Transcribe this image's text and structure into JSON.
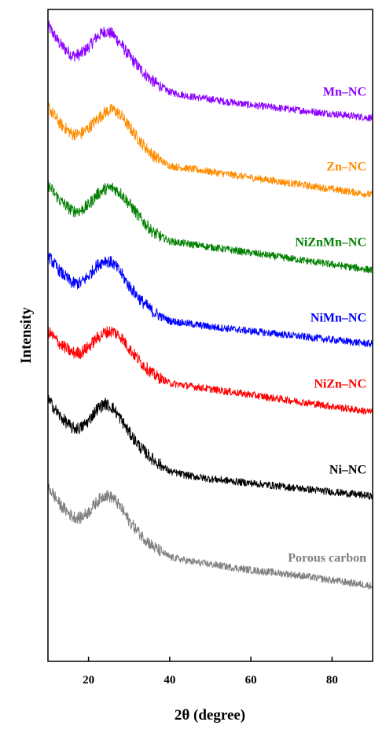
{
  "chart_data": {
    "type": "line",
    "title": "",
    "xlabel": "2θ (degree)",
    "ylabel": "Intensity",
    "xlim": [
      10,
      90
    ],
    "xticks": [
      20,
      40,
      60,
      80
    ],
    "xtick_labels": [
      "20",
      "40",
      "60",
      "80"
    ],
    "y_ticks_shown": false,
    "grid": false,
    "legend": "none (series labeled directly above each curve on the right)",
    "x": [
      10,
      13,
      16,
      18,
      20,
      22,
      24,
      26,
      28,
      30,
      33,
      36,
      40,
      45,
      50,
      60,
      70,
      80,
      90
    ],
    "series": [
      {
        "name": "Mn–NC",
        "color": "#8B00FF",
        "values": [
          8.78,
          8.52,
          8.36,
          8.38,
          8.48,
          8.62,
          8.7,
          8.66,
          8.52,
          8.36,
          8.16,
          8.0,
          7.86,
          7.8,
          7.76,
          7.68,
          7.62,
          7.56,
          7.5
        ]
      },
      {
        "name": "Zn–NC",
        "color": "#FF8C00",
        "values": [
          7.66,
          7.42,
          7.28,
          7.28,
          7.36,
          7.48,
          7.58,
          7.62,
          7.54,
          7.38,
          7.16,
          6.98,
          6.84,
          6.8,
          6.76,
          6.68,
          6.6,
          6.52,
          6.44
        ]
      },
      {
        "name": "NiZnMn–NC",
        "color": "#008000",
        "values": [
          6.58,
          6.36,
          6.22,
          6.22,
          6.3,
          6.44,
          6.52,
          6.54,
          6.46,
          6.32,
          6.1,
          5.92,
          5.8,
          5.76,
          5.72,
          5.64,
          5.56,
          5.48,
          5.4
        ]
      },
      {
        "name": "NiMn–NC",
        "color": "#0000FF",
        "values": [
          5.6,
          5.38,
          5.22,
          5.22,
          5.32,
          5.46,
          5.54,
          5.5,
          5.36,
          5.18,
          4.98,
          4.82,
          4.7,
          4.66,
          4.62,
          4.56,
          4.5,
          4.44,
          4.38
        ]
      },
      {
        "name": "NiZn–NC",
        "color": "#FF0000",
        "values": [
          4.56,
          4.38,
          4.26,
          4.26,
          4.34,
          4.46,
          4.54,
          4.56,
          4.48,
          4.32,
          4.12,
          3.96,
          3.84,
          3.8,
          3.76,
          3.68,
          3.6,
          3.52,
          3.44
        ]
      },
      {
        "name": "Ni–NC",
        "color": "#000000",
        "values": [
          3.62,
          3.38,
          3.22,
          3.22,
          3.32,
          3.48,
          3.56,
          3.5,
          3.34,
          3.16,
          2.94,
          2.78,
          2.62,
          2.56,
          2.52,
          2.46,
          2.4,
          2.34,
          2.28
        ]
      },
      {
        "name": "Porous carbon",
        "color": "#808080",
        "values": [
          2.42,
          2.16,
          2.0,
          1.98,
          2.06,
          2.2,
          2.3,
          2.26,
          2.12,
          1.94,
          1.74,
          1.58,
          1.44,
          1.38,
          1.34,
          1.26,
          1.2,
          1.12,
          1.04
        ]
      }
    ]
  }
}
